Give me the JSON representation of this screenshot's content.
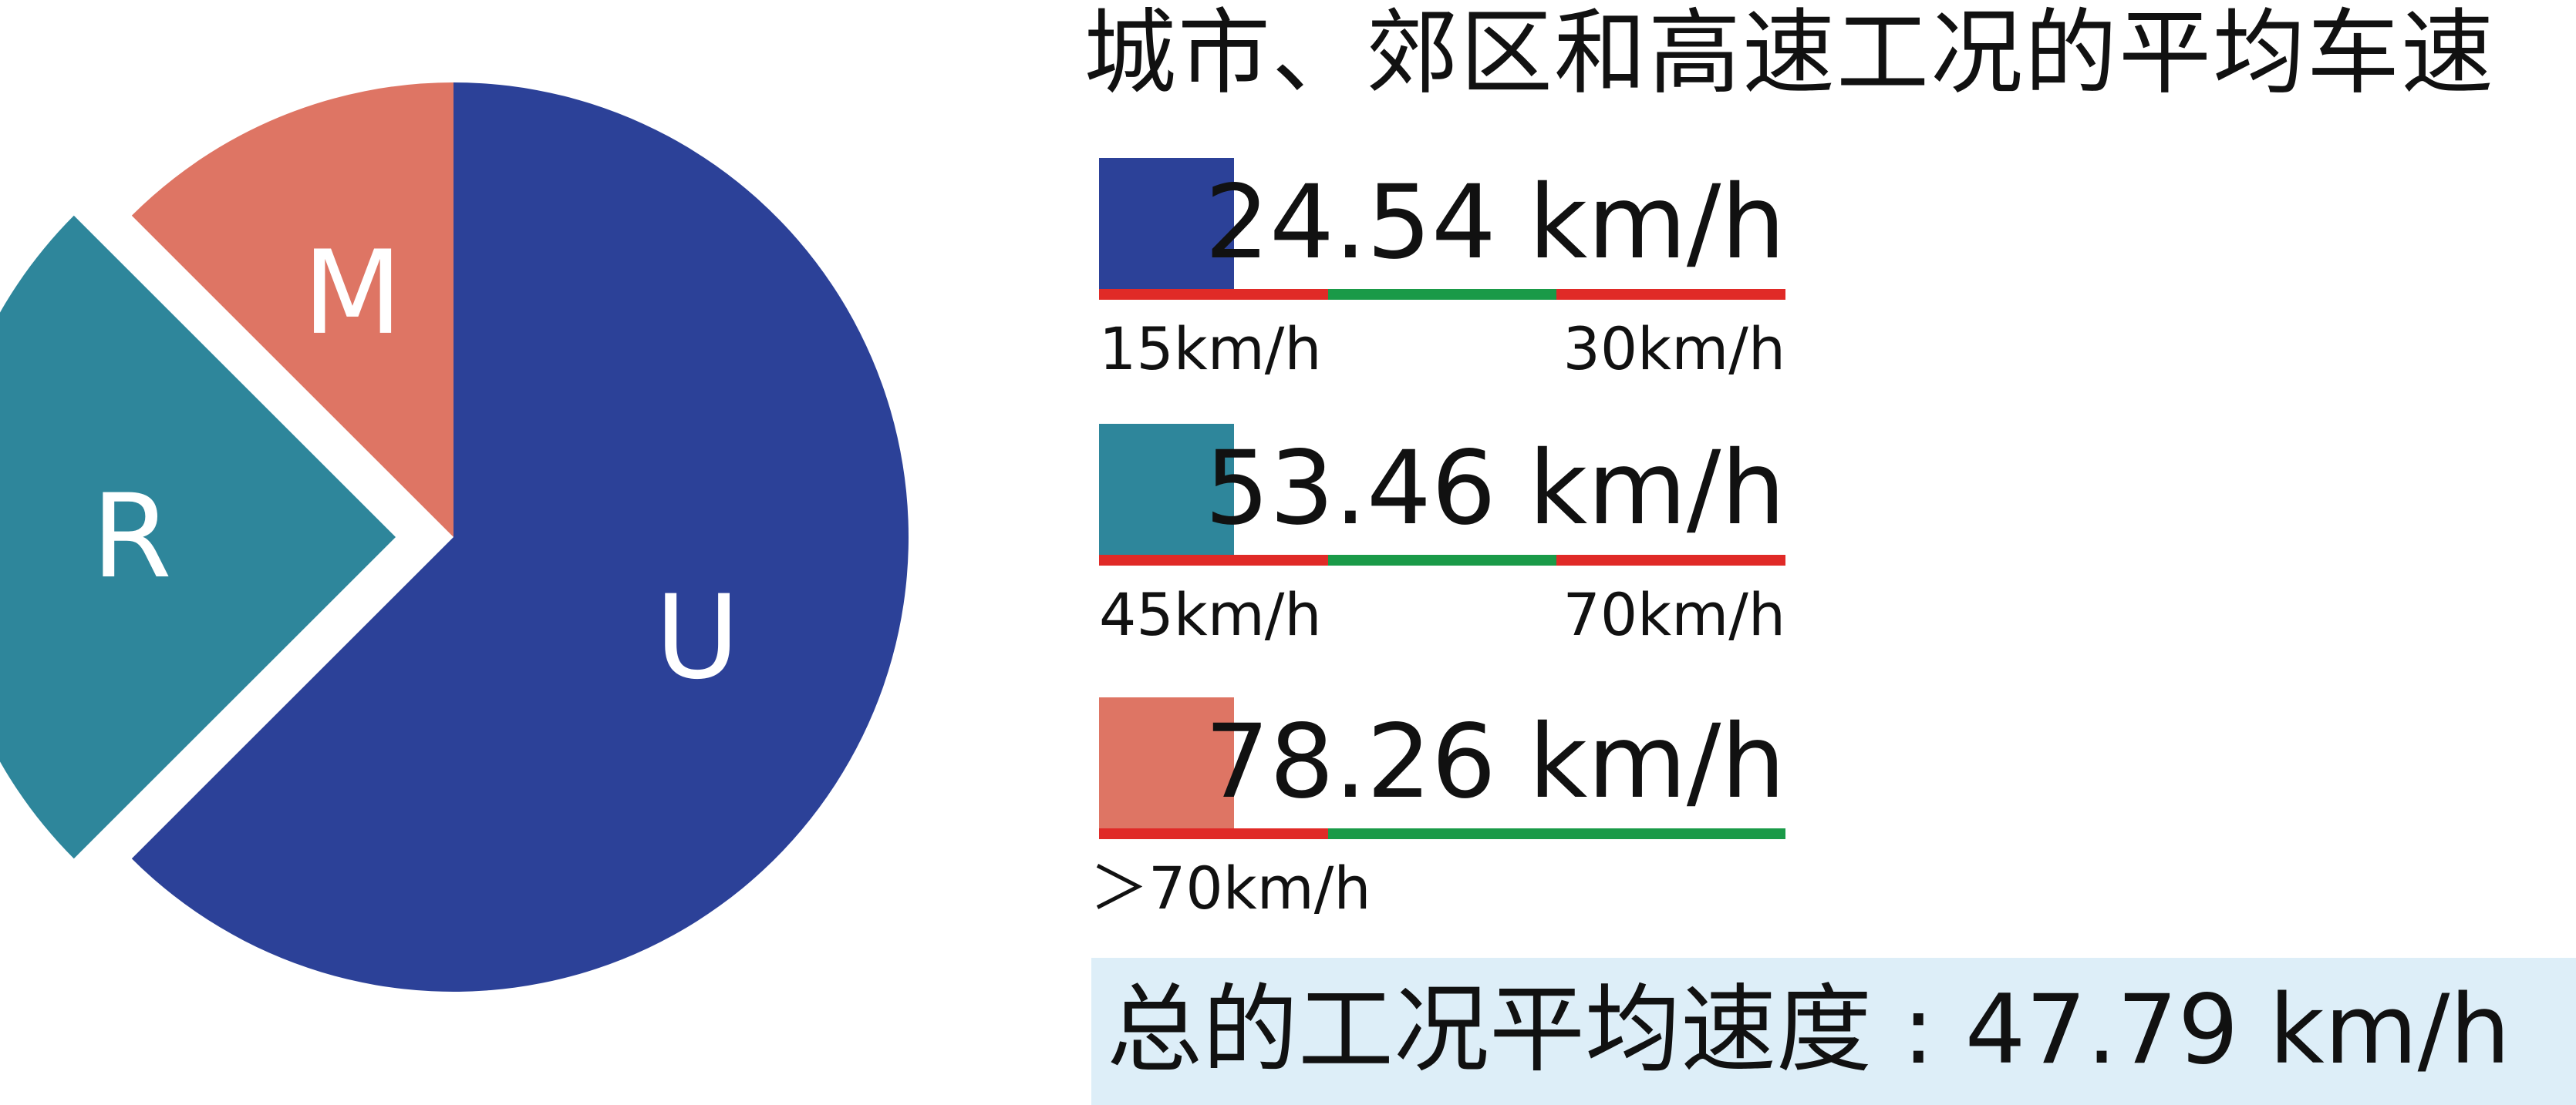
{
  "chart_data": {
    "type": "pie",
    "title": "城市、郊区和高速工况的平均车速",
    "slices": [
      {
        "label": "U",
        "value": 62.5,
        "color": "#2c4198",
        "exploded": false
      },
      {
        "label": "R",
        "value": 25.0,
        "color": "#2e869b",
        "exploded": true
      },
      {
        "label": "M",
        "value": 12.5,
        "color": "#de7564",
        "exploded": false
      }
    ]
  },
  "legend": [
    {
      "speed": "24.54 km/h",
      "color": "#2c4198",
      "range_low": "15km/h",
      "range_high": "30km/h",
      "bar_colors": [
        "#e02a27",
        "#1a9a48",
        "#e02a27"
      ]
    },
    {
      "speed": "53.46 km/h",
      "color": "#2e869b",
      "range_low": "45km/h",
      "range_high": "70km/h",
      "bar_colors": [
        "#e02a27",
        "#1a9a48",
        "#e02a27"
      ]
    },
    {
      "speed": "78.26 km/h",
      "color": "#de7564",
      "range_low": "＞70km/h",
      "range_high": "",
      "bar_colors": [
        "#e02a27",
        "#1a9a48",
        "#1a9a48"
      ]
    }
  ],
  "total": {
    "text": "总的工况平均速度 : 47.79 km/h",
    "background": "#ddeef8"
  }
}
